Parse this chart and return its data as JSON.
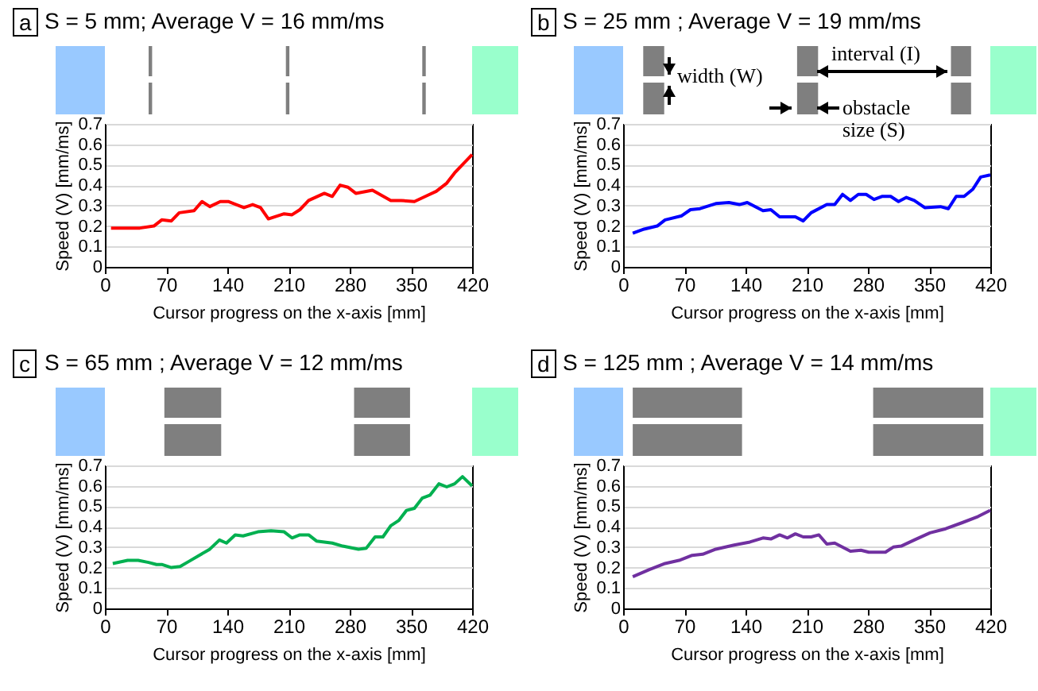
{
  "chart_data": [
    {
      "type": "line",
      "title": "S = 5 mm; Average V = 16 mm/ms",
      "xlabel": "Cursor progress on the x-axis [mm]",
      "ylabel": "Speed (V) [mm/ms]",
      "annotations": [
        "a"
      ],
      "x": [
        7,
        40,
        56,
        65,
        76,
        85,
        102,
        111,
        120,
        132,
        141,
        159,
        169,
        178,
        187,
        205,
        214,
        223,
        233,
        251,
        260,
        269,
        278,
        287,
        306,
        327,
        339,
        354,
        369,
        379,
        391,
        400,
        420
      ],
      "series": [
        {
          "color": "#ff0000",
          "values": [
            0.19,
            0.19,
            0.2,
            0.23,
            0.225,
            0.265,
            0.275,
            0.32,
            0.295,
            0.32,
            0.32,
            0.29,
            0.305,
            0.29,
            0.235,
            0.26,
            0.255,
            0.28,
            0.325,
            0.36,
            0.345,
            0.4,
            0.39,
            0.36,
            0.375,
            0.325,
            0.325,
            0.32,
            0.35,
            0.37,
            0.41,
            0.46,
            0.55
          ]
        }
      ],
      "xlim": [
        0,
        420
      ],
      "ylim": [
        0,
        0.7
      ],
      "xticks": [
        0,
        70,
        140,
        210,
        280,
        350,
        420
      ],
      "yticks": [
        0,
        0.1,
        0.2,
        0.3,
        0.4,
        0.5,
        0.6,
        0.7
      ],
      "grid": "y"
    },
    {
      "type": "line",
      "title": "S = 25 mm ; Average V = 19 mm/ms",
      "xlabel": "Cursor progress on the x-axis [mm]",
      "ylabel": "Speed (V) [mm/ms]",
      "annotations": [
        "b",
        "width (W)",
        "interval (I)",
        "obstacle size (S)"
      ],
      "x": [
        11,
        24,
        39,
        48,
        67,
        77,
        88,
        106,
        121,
        133,
        142,
        160,
        169,
        179,
        197,
        206,
        215,
        233,
        242,
        251,
        260,
        269,
        278,
        287,
        296,
        306,
        315,
        324,
        333,
        345,
        363,
        372,
        381,
        390,
        400,
        409,
        420
      ],
      "series": [
        {
          "color": "#0000ff",
          "values": [
            0.165,
            0.185,
            0.2,
            0.23,
            0.25,
            0.28,
            0.285,
            0.31,
            0.315,
            0.305,
            0.315,
            0.275,
            0.28,
            0.245,
            0.245,
            0.225,
            0.265,
            0.305,
            0.305,
            0.355,
            0.325,
            0.355,
            0.355,
            0.33,
            0.345,
            0.345,
            0.32,
            0.34,
            0.325,
            0.29,
            0.295,
            0.285,
            0.345,
            0.345,
            0.38,
            0.44,
            0.45
          ]
        }
      ],
      "xlim": [
        0,
        420
      ],
      "ylim": [
        0,
        0.7
      ],
      "xticks": [
        0,
        70,
        140,
        210,
        280,
        350,
        420
      ],
      "yticks": [
        0,
        0.1,
        0.2,
        0.3,
        0.4,
        0.5,
        0.6,
        0.7
      ],
      "grid": "y"
    },
    {
      "type": "line",
      "title": "S = 65 mm ; Average V = 12 mm/ms",
      "xlabel": "Cursor progress on the x-axis [mm]",
      "ylabel": "Speed (V) [mm/ms]",
      "annotations": [
        "c"
      ],
      "x": [
        9,
        26,
        38,
        50,
        59,
        65,
        76,
        86,
        96,
        120,
        131,
        139,
        149,
        158,
        175,
        190,
        205,
        214,
        223,
        233,
        242,
        260,
        272,
        290,
        299,
        309,
        318,
        327,
        336,
        345,
        354,
        363,
        372,
        382,
        391,
        400,
        409,
        420
      ],
      "series": [
        {
          "color": "#00b050",
          "values": [
            0.22,
            0.235,
            0.235,
            0.225,
            0.215,
            0.215,
            0.2,
            0.205,
            0.23,
            0.29,
            0.335,
            0.32,
            0.36,
            0.355,
            0.375,
            0.38,
            0.375,
            0.345,
            0.36,
            0.36,
            0.33,
            0.32,
            0.305,
            0.29,
            0.295,
            0.35,
            0.35,
            0.405,
            0.43,
            0.48,
            0.49,
            0.54,
            0.555,
            0.61,
            0.595,
            0.61,
            0.645,
            0.6
          ]
        }
      ],
      "xlim": [
        0,
        420
      ],
      "ylim": [
        0,
        0.7
      ],
      "xticks": [
        0,
        70,
        140,
        210,
        280,
        350,
        420
      ],
      "yticks": [
        0,
        0.1,
        0.2,
        0.3,
        0.4,
        0.5,
        0.6,
        0.7
      ],
      "grid": "y"
    },
    {
      "type": "line",
      "title": "S = 125 mm ; Average V = 14 mm/ms",
      "xlabel": "Cursor progress on the x-axis [mm]",
      "ylabel": "Speed (V) [mm/ms]",
      "annotations": [
        "d"
      ],
      "x": [
        11,
        30,
        48,
        64,
        79,
        91,
        106,
        127,
        145,
        160,
        169,
        179,
        188,
        197,
        206,
        215,
        224,
        233,
        242,
        260,
        272,
        281,
        300,
        309,
        318,
        333,
        351,
        369,
        388,
        406,
        420
      ],
      "series": [
        {
          "color": "#7030a0",
          "values": [
            0.155,
            0.19,
            0.22,
            0.235,
            0.26,
            0.265,
            0.29,
            0.31,
            0.325,
            0.345,
            0.34,
            0.36,
            0.345,
            0.365,
            0.35,
            0.35,
            0.36,
            0.315,
            0.32,
            0.28,
            0.285,
            0.275,
            0.275,
            0.3,
            0.305,
            0.335,
            0.37,
            0.39,
            0.42,
            0.45,
            0.48
          ]
        }
      ],
      "xlim": [
        0,
        420
      ],
      "ylim": [
        0,
        0.7
      ],
      "xticks": [
        0,
        70,
        140,
        210,
        280,
        350,
        420
      ],
      "yticks": [
        0,
        0.1,
        0.2,
        0.3,
        0.4,
        0.5,
        0.6,
        0.7
      ],
      "grid": "y"
    }
  ]
}
